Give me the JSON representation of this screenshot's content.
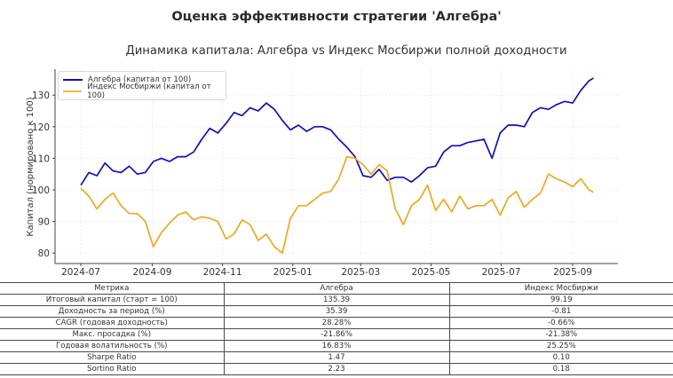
{
  "figure": {
    "suptitle": "Оценка эффективности стратегии 'Алгебра'",
    "subtitle": "Динамика капитала: Алгебра vs Индекс Мосбиржи полной доходности"
  },
  "chart_data": {
    "type": "line",
    "title": "Динамика капитала: Алгебра vs Индекс Мосбиржи полной доходности",
    "xlabel": "",
    "ylabel": "Капитал (нормировано к 100)",
    "ylim": [
      78,
      138
    ],
    "yticks": [
      80,
      90,
      100,
      110,
      120,
      130
    ],
    "xticks": [
      "2024-07",
      "2024-09",
      "2024-11",
      "2025-01",
      "2025-03",
      "2025-05",
      "2025-07",
      "2025-09"
    ],
    "grid": true,
    "legend_position": "upper left",
    "colors": {
      "algebra": "#1111bb",
      "index": "#f0a81e"
    },
    "x": [
      "2024-07-01",
      "2024-07-08",
      "2024-07-15",
      "2024-07-22",
      "2024-07-29",
      "2024-08-05",
      "2024-08-12",
      "2024-08-19",
      "2024-08-26",
      "2024-09-02",
      "2024-09-09",
      "2024-09-16",
      "2024-09-23",
      "2024-09-30",
      "2024-10-07",
      "2024-10-14",
      "2024-10-21",
      "2024-10-28",
      "2024-11-04",
      "2024-11-11",
      "2024-11-18",
      "2024-11-25",
      "2024-12-02",
      "2024-12-09",
      "2024-12-16",
      "2024-12-23",
      "2024-12-30",
      "2025-01-06",
      "2025-01-13",
      "2025-01-20",
      "2025-01-27",
      "2025-02-03",
      "2025-02-10",
      "2025-02-17",
      "2025-02-24",
      "2025-03-03",
      "2025-03-10",
      "2025-03-17",
      "2025-03-24",
      "2025-03-31",
      "2025-04-07",
      "2025-04-14",
      "2025-04-21",
      "2025-04-28",
      "2025-05-05",
      "2025-05-12",
      "2025-05-19",
      "2025-05-26",
      "2025-06-02",
      "2025-06-09",
      "2025-06-16",
      "2025-06-23",
      "2025-06-30",
      "2025-07-07",
      "2025-07-14",
      "2025-07-21",
      "2025-07-28",
      "2025-08-04",
      "2025-08-11",
      "2025-08-18",
      "2025-08-25",
      "2025-09-01",
      "2025-09-08",
      "2025-09-15",
      "2025-09-19"
    ],
    "series": [
      {
        "name": "Алгебра (капитал от 100)",
        "values": [
          101.5,
          105.5,
          104.5,
          108.5,
          106,
          105.5,
          107.5,
          105,
          105.5,
          109,
          110,
          109,
          110.5,
          110.5,
          112,
          116,
          119.5,
          118,
          121,
          124.5,
          123.5,
          126,
          125,
          127.5,
          125.5,
          122,
          119,
          120.5,
          118.5,
          120,
          120,
          119,
          116,
          113.5,
          110.5,
          104.5,
          104,
          106.5,
          103,
          104,
          104,
          102.5,
          104.5,
          107,
          107.5,
          112,
          114,
          114,
          115,
          115.5,
          116,
          110,
          118,
          120.5,
          120.5,
          120,
          124.5,
          126,
          125.5,
          127,
          128,
          127.5,
          131.5,
          134.5,
          135.4
        ]
      },
      {
        "name": "Индекс Мосбиржи (капитал от 100)",
        "values": [
          100.5,
          98,
          94,
          97,
          99,
          95,
          92.5,
          92.5,
          90,
          82,
          86.5,
          89.5,
          92,
          93,
          90.5,
          91.5,
          91,
          90,
          84.5,
          86,
          90.5,
          89,
          84,
          86,
          82,
          80,
          91,
          95,
          95,
          97,
          99,
          99.5,
          103.5,
          110.5,
          110,
          108,
          105,
          108,
          106,
          94,
          89,
          95,
          97,
          101.5,
          93.5,
          97,
          93,
          98,
          94,
          95,
          95,
          97,
          92,
          97.5,
          99.5,
          94.5,
          97,
          99,
          105,
          103.5,
          102.5,
          101,
          103.5,
          100,
          99.2
        ]
      }
    ]
  },
  "legend": {
    "items": [
      {
        "label": "Алгебра (капитал от 100)",
        "color": "#1111bb"
      },
      {
        "label": "Индекс Мосбиржи (капитал от 100)",
        "color": "#f0a81e"
      }
    ]
  },
  "table": {
    "headers": [
      "Метрика",
      "Алгебра",
      "Индекс Мосбиржи"
    ],
    "rows": [
      [
        "Итоговый капитал (старт = 100)",
        "135.39",
        "99.19"
      ],
      [
        "Доходность за период (%)",
        "35.39",
        "-0.81"
      ],
      [
        "CAGR (годовая доходность)",
        "28.28%",
        "-0.66%"
      ],
      [
        "Макс. просадка (%)",
        "-21.86%",
        "-21.38%"
      ],
      [
        "Годовая волатильность (%)",
        "16.83%",
        "25.25%"
      ],
      [
        "Sharpe Ratio",
        "1.47",
        "0.10"
      ],
      [
        "Sortino Ratio",
        "2.23",
        "0.18"
      ]
    ]
  }
}
